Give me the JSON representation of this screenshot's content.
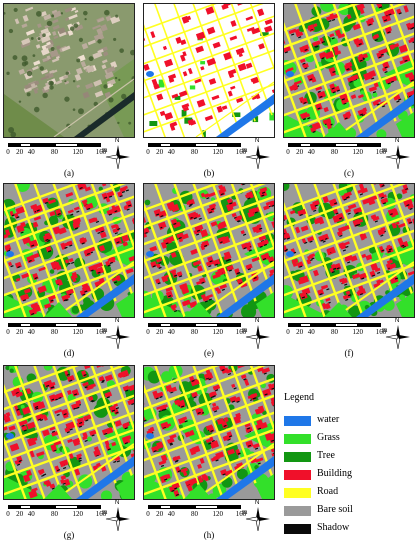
{
  "panels": [
    {
      "id": "a",
      "caption": "(a)",
      "kind": "aerial"
    },
    {
      "id": "b",
      "caption": "(b)",
      "kind": "ground-truth"
    },
    {
      "id": "c",
      "caption": "(c)",
      "kind": "classified"
    },
    {
      "id": "d",
      "caption": "(d)",
      "kind": "classified"
    },
    {
      "id": "e",
      "caption": "(e)",
      "kind": "classified"
    },
    {
      "id": "f",
      "caption": "(f)",
      "kind": "classified"
    },
    {
      "id": "g",
      "caption": "(g)",
      "kind": "classified"
    },
    {
      "id": "h",
      "caption": "(h)",
      "kind": "classified"
    }
  ],
  "scale_bar": {
    "ticks": [
      "0",
      "20",
      "40",
      "80",
      "120",
      "160"
    ],
    "tick_values": [
      0,
      20,
      40,
      80,
      120,
      160
    ],
    "unit": "m"
  },
  "north_arrow": {
    "label": "N"
  },
  "legend": {
    "title": "Legend",
    "items": [
      {
        "label": "water",
        "color": "#1f77e8"
      },
      {
        "label": "Grass",
        "color": "#33e02a"
      },
      {
        "label": "Tree",
        "color": "#129612"
      },
      {
        "label": "Building",
        "color": "#f0102a"
      },
      {
        "label": "Road",
        "color": "#ffff22"
      },
      {
        "label": "Bare soil",
        "color": "#9a9a9a"
      },
      {
        "label": "Shadow",
        "color": "#0a0a0a"
      }
    ]
  }
}
